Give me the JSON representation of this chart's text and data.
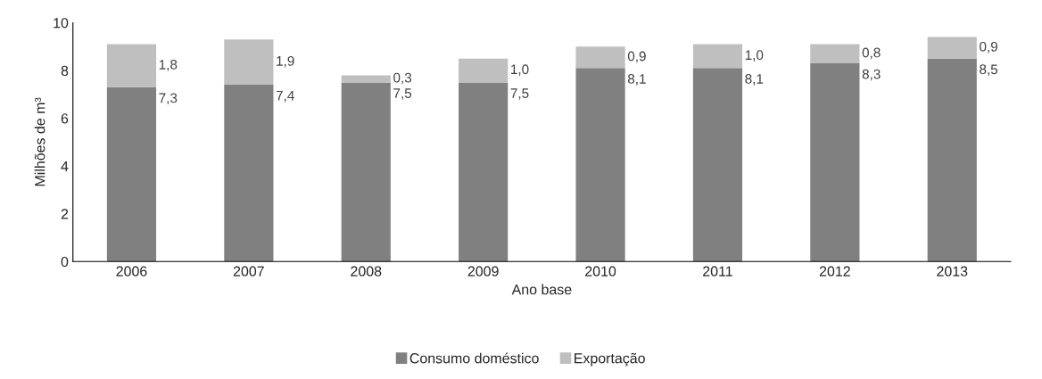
{
  "chart_data": {
    "type": "bar",
    "stacked": true,
    "xlabel": "Ano base",
    "ylabel": "Milhões de m³",
    "categories": [
      "2006",
      "2007",
      "2008",
      "2009",
      "2010",
      "2011",
      "2012",
      "2013"
    ],
    "series": [
      {
        "name": "Consumo doméstico",
        "color": "#808080",
        "values": [
          7.3,
          7.4,
          7.5,
          7.5,
          8.1,
          8.1,
          8.3,
          8.5
        ],
        "value_labels": [
          "7,3",
          "7,4",
          "7,5",
          "7,5",
          "8,1",
          "8,1",
          "8,3",
          "8,5"
        ]
      },
      {
        "name": "Exportação",
        "color": "#bfbfbf",
        "values": [
          1.8,
          1.9,
          0.3,
          1.0,
          0.9,
          1.0,
          0.8,
          0.9
        ],
        "value_labels": [
          "1,8",
          "1,9",
          "0,3",
          "1,0",
          "0,9",
          "1,0",
          "0,8",
          "0,9"
        ]
      }
    ],
    "ylim": [
      0,
      10
    ],
    "yticks": [
      0,
      2,
      4,
      6,
      8,
      10
    ],
    "grid": false,
    "legend": "bottom"
  }
}
